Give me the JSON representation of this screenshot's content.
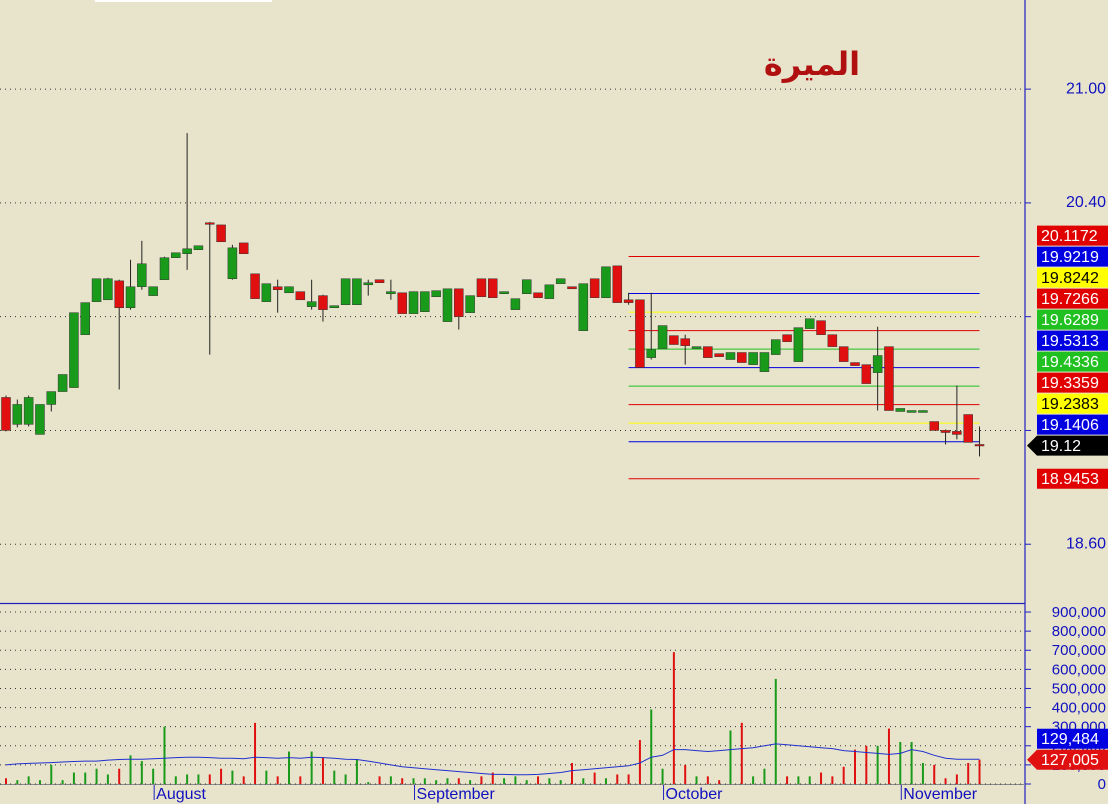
{
  "chart_data": {
    "type": "candlestick",
    "title": "الميرة",
    "categories": [
      null,
      null,
      null,
      null,
      null,
      null,
      null,
      null,
      null,
      null,
      null,
      null,
      null,
      "August",
      null,
      null,
      null,
      null,
      null,
      null,
      null,
      null,
      null,
      null,
      null,
      null,
      null,
      null,
      null,
      null,
      null,
      null,
      null,
      null,
      null,
      null,
      "September",
      null,
      null,
      null,
      null,
      null,
      null,
      null,
      null,
      null,
      null,
      null,
      null,
      null,
      null,
      null,
      null,
      null,
      null,
      null,
      null,
      null,
      "October",
      null,
      null,
      null,
      null,
      null,
      null,
      null,
      null,
      null,
      null,
      null,
      null,
      null,
      null,
      null,
      null,
      null,
      null,
      null,
      null,
      "November",
      null,
      null,
      null,
      null,
      null,
      null,
      null
    ],
    "open": [
      19.374,
      19.232,
      19.232,
      19.179,
      19.337,
      19.405,
      19.426,
      19.705,
      19.879,
      19.889,
      19.989,
      19.847,
      19.958,
      19.911,
      19.995,
      20.111,
      20.132,
      20.153,
      20.295,
      20.284,
      20.0,
      20.189,
      20.026,
      19.879,
      19.958,
      19.926,
      19.932,
      19.853,
      19.911,
      19.847,
      19.863,
      19.863,
      19.968,
      19.995,
      19.921,
      19.926,
      19.816,
      19.826,
      19.905,
      19.774,
      19.947,
      19.821,
      20.0,
      20.0,
      19.921,
      19.837,
      19.921,
      19.926,
      19.895,
      19.974,
      19.958,
      19.726,
      20.0,
      19.9,
      20.068,
      19.889,
      19.889,
      19.584,
      19.632,
      19.7,
      19.684,
      19.632,
      19.642,
      19.605,
      19.574,
      19.611,
      19.547,
      19.51,
      19.6,
      19.705,
      19.563,
      19.737,
      19.779,
      19.705,
      19.642,
      19.558,
      19.547,
      19.505,
      19.642,
      19.3,
      19.295,
      19.295,
      19.247,
      19.2,
      19.195,
      19.284,
      19.126
    ],
    "high": [
      19.384,
      19.363,
      19.384,
      19.337,
      19.405,
      19.495,
      19.821,
      19.874,
      20.0,
      20.005,
      19.995,
      20.1,
      20.2,
      19.958,
      20.116,
      20.137,
      20.768,
      20.174,
      20.3,
      20.284,
      20.179,
      20.189,
      20.026,
      19.974,
      19.995,
      19.958,
      19.932,
      19.995,
      19.916,
      19.858,
      20.0,
      20.0,
      19.995,
      19.995,
      19.995,
      19.926,
      19.932,
      19.932,
      19.937,
      19.947,
      19.947,
      19.911,
      20.0,
      20.0,
      19.932,
      19.895,
      19.995,
      19.926,
      19.968,
      20.0,
      19.958,
      19.974,
      20.0,
      20.063,
      20.068,
      19.926,
      19.889,
      19.926,
      19.753,
      19.7,
      19.705,
      19.642,
      19.642,
      19.605,
      19.611,
      19.611,
      19.611,
      19.611,
      19.679,
      19.705,
      19.742,
      19.789,
      19.779,
      19.705,
      19.642,
      19.558,
      19.547,
      19.747,
      19.642,
      19.316,
      19.305,
      19.305,
      19.247,
      19.205,
      19.437,
      19.284,
      19.221
    ],
    "low": [
      19.195,
      19.216,
      19.221,
      19.179,
      19.3,
      19.405,
      19.426,
      19.705,
      19.879,
      19.889,
      19.416,
      19.837,
      19.942,
      19.911,
      19.995,
      20.111,
      20.047,
      20.153,
      19.6,
      20.195,
      19.995,
      20.132,
      19.895,
      19.879,
      19.821,
      19.926,
      19.889,
      19.837,
      19.774,
      19.847,
      19.863,
      19.863,
      19.911,
      19.979,
      19.889,
      19.816,
      19.816,
      19.826,
      19.905,
      19.774,
      19.732,
      19.821,
      19.905,
      19.9,
      19.921,
      19.837,
      19.921,
      19.9,
      19.895,
      19.974,
      19.947,
      19.726,
      19.9,
      19.9,
      19.874,
      19.863,
      19.532,
      19.574,
      19.632,
      19.653,
      19.547,
      19.632,
      19.584,
      19.589,
      19.574,
      19.558,
      19.547,
      19.51,
      19.6,
      19.668,
      19.563,
      19.737,
      19.705,
      19.642,
      19.563,
      19.542,
      19.447,
      19.305,
      19.305,
      19.3,
      19.295,
      19.295,
      19.2,
      19.126,
      19.153,
      19.137,
      19.063
    ],
    "close": [
      19.2,
      19.337,
      19.374,
      19.337,
      19.405,
      19.495,
      19.821,
      19.874,
      20.0,
      20.0,
      19.847,
      19.958,
      20.079,
      19.958,
      20.111,
      20.137,
      20.158,
      20.174,
      20.289,
      20.195,
      20.163,
      20.132,
      19.895,
      19.974,
      19.942,
      19.958,
      19.889,
      19.879,
      19.837,
      19.858,
      20.0,
      20.0,
      19.979,
      19.979,
      19.932,
      19.816,
      19.932,
      19.932,
      19.937,
      19.947,
      19.8,
      19.911,
      19.905,
      19.9,
      19.932,
      19.895,
      19.995,
      19.9,
      19.968,
      20.0,
      19.947,
      19.974,
      19.9,
      20.063,
      19.874,
      19.874,
      19.532,
      19.626,
      19.753,
      19.653,
      19.647,
      19.642,
      19.584,
      19.589,
      19.611,
      19.558,
      19.611,
      19.611,
      19.679,
      19.668,
      19.742,
      19.789,
      19.705,
      19.642,
      19.563,
      19.542,
      19.447,
      19.595,
      19.305,
      19.316,
      19.305,
      19.305,
      19.2,
      19.189,
      19.179,
      19.137,
      19.12
    ],
    "up_color": "#1a9a1a",
    "down_color": "#e01010",
    "volume": [
      30000,
      20000,
      40000,
      20000,
      100000,
      20000,
      60000,
      60000,
      80000,
      50000,
      80000,
      150000,
      120000,
      80000,
      300000,
      40000,
      50000,
      50000,
      50000,
      80000,
      70000,
      40000,
      320000,
      70000,
      40000,
      170000,
      40000,
      170000,
      140000,
      70000,
      50000,
      130000,
      10000,
      40000,
      40000,
      30000,
      30000,
      30000,
      20000,
      30000,
      30000,
      20000,
      40000,
      60000,
      30000,
      40000,
      20000,
      40000,
      30000,
      20000,
      110000,
      30000,
      60000,
      30000,
      50000,
      50000,
      230000,
      390000,
      80000,
      690000,
      100000,
      40000,
      40000,
      20000,
      280000,
      320000,
      40000,
      80000,
      550000,
      40000,
      40000,
      40000,
      60000,
      40000,
      90000,
      180000,
      200000,
      200000,
      290000,
      220000,
      220000,
      110000,
      100000,
      30000,
      50000,
      110000,
      127005
    ],
    "volume_ma": [
      100000,
      105000,
      108000,
      110000,
      112000,
      115000,
      118000,
      120000,
      120000,
      125000,
      128000,
      130000,
      130000,
      132000,
      135000,
      138000,
      140000,
      140000,
      138000,
      135000,
      135000,
      132000,
      140000,
      138000,
      135000,
      138000,
      135000,
      140000,
      138000,
      135000,
      130000,
      128000,
      120000,
      110000,
      100000,
      90000,
      85000,
      80000,
      75000,
      70000,
      65000,
      60000,
      55000,
      50000,
      50000,
      48000,
      48000,
      50000,
      55000,
      60000,
      70000,
      75000,
      80000,
      85000,
      90000,
      95000,
      110000,
      140000,
      150000,
      180000,
      180000,
      175000,
      170000,
      175000,
      180000,
      185000,
      190000,
      200000,
      210000,
      205000,
      200000,
      195000,
      190000,
      185000,
      175000,
      170000,
      165000,
      160000,
      155000,
      160000,
      180000,
      170000,
      150000,
      135000,
      130000,
      130000,
      129484
    ],
    "volume_ma_color": "#2030d0",
    "ylim": [
      18.29,
      21.47
    ],
    "yticks": [
      {
        "value": 21,
        "label": "21.00"
      },
      {
        "value": 20.4,
        "label": "20.40"
      },
      {
        "value": 19.8,
        "label": null
      },
      {
        "value": 19.2,
        "label": null
      },
      {
        "value": 18.6,
        "label": "18.60"
      }
    ],
    "vlim": [
      0,
      942000
    ],
    "vticks": [
      0,
      {
        "value": 100000,
        "label": "100,000"
      },
      {
        "value": 200000,
        "label": "200,000"
      },
      {
        "value": 300000,
        "label": "300,000"
      },
      {
        "value": 400000,
        "label": "400,000"
      },
      {
        "value": 500000,
        "label": "500,000"
      },
      {
        "value": 600000,
        "label": "600,000"
      },
      {
        "value": 700000,
        "label": "700,000"
      },
      {
        "value": 800000,
        "label": "800,000"
      },
      {
        "value": 900000,
        "label": "900,000"
      }
    ],
    "levels": [
      {
        "value": 20.1172,
        "color": "#e00000"
      },
      {
        "value": 19.9219,
        "color": "#0000e0"
      },
      {
        "value": 19.8242,
        "color": "#ffff00"
      },
      {
        "value": 19.7266,
        "color": "#e00000"
      },
      {
        "value": 19.6289,
        "color": "#20c020"
      },
      {
        "value": 19.5313,
        "color": "#0000e0"
      },
      {
        "value": 19.4336,
        "color": "#20c020"
      },
      {
        "value": 19.3359,
        "color": "#e00000"
      },
      {
        "value": 19.2383,
        "color": "#ffff00"
      },
      {
        "value": 19.1406,
        "color": "#0000e0"
      },
      {
        "value": 18.9453,
        "color": "#e00000"
      }
    ],
    "current_price": 19.12,
    "current_volume": {
      "value": 127005,
      "label": "127,005"
    },
    "current_volume_ma": {
      "value": 129484,
      "label": "129,484"
    },
    "grid": true
  }
}
